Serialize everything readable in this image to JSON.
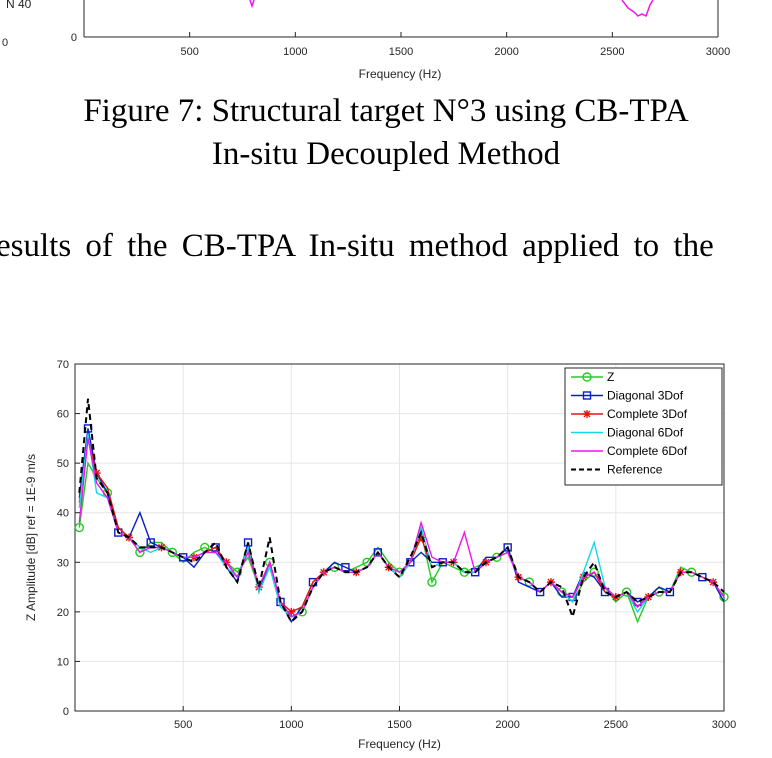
{
  "top_figure": {
    "ylabel_fragment": "N 40",
    "ytick_zero": "0",
    "left_stray": "0",
    "xticks": [
      "500",
      "1000",
      "1500",
      "2000",
      "2500",
      "3000"
    ],
    "xlabel": "Frequency (Hz)"
  },
  "caption": {
    "line1": "Figure 7: Structural target N°3 using CB-TPA",
    "line2": "In-situ Decoupled Method"
  },
  "body_text": "esults of the CB-TPA In-situ method applied to the",
  "chart_data": {
    "type": "line",
    "title": "",
    "xlabel": "Frequency (Hz)",
    "ylabel": "Z Amplitude [dB] ref = 1E-9 m/s",
    "xlim": [
      0,
      3000
    ],
    "ylim": [
      0,
      70
    ],
    "xticks": [
      500,
      1000,
      1500,
      2000,
      2500,
      3000
    ],
    "yticks": [
      0,
      10,
      20,
      30,
      40,
      50,
      60,
      70
    ],
    "grid": true,
    "legend_position": "top-right",
    "x": [
      20,
      60,
      100,
      150,
      200,
      250,
      300,
      350,
      400,
      450,
      500,
      550,
      600,
      650,
      700,
      750,
      800,
      850,
      900,
      950,
      1000,
      1050,
      1100,
      1150,
      1200,
      1250,
      1300,
      1350,
      1400,
      1450,
      1500,
      1550,
      1600,
      1650,
      1700,
      1750,
      1800,
      1850,
      1900,
      1950,
      2000,
      2050,
      2100,
      2150,
      2200,
      2250,
      2300,
      2350,
      2400,
      2450,
      2500,
      2550,
      2600,
      2650,
      2700,
      2750,
      2800,
      2850,
      2900,
      2950,
      3000
    ],
    "series": [
      {
        "name": "Z",
        "color": "#22cc22",
        "marker": "circle",
        "dash": "",
        "values": [
          37,
          50,
          47,
          44,
          37,
          35,
          32,
          34,
          34,
          32,
          30,
          32,
          33,
          32,
          30,
          28,
          31,
          25,
          30,
          22,
          19,
          20,
          25,
          28,
          29,
          28,
          29,
          30,
          33,
          30,
          28,
          30,
          36,
          26,
          30,
          29,
          28,
          29,
          30,
          31,
          33,
          27,
          26,
          24,
          26,
          24,
          22,
          26,
          28,
          25,
          22,
          24,
          18,
          23,
          24,
          24,
          29,
          28,
          27,
          26,
          23
        ]
      },
      {
        "name": "Diagonal 3Dof",
        "color": "#0a1ec8",
        "marker": "square",
        "dash": "",
        "values": [
          43,
          57,
          48,
          44,
          36,
          35,
          40,
          34,
          33,
          32,
          31,
          29,
          32,
          33,
          29,
          26,
          34,
          24,
          30,
          22,
          18,
          21,
          26,
          28,
          30,
          29,
          28,
          29,
          32,
          29,
          27,
          30,
          32,
          30,
          30,
          30,
          28,
          28,
          31,
          31,
          33,
          26,
          25,
          24,
          26,
          23,
          23,
          28,
          27,
          24,
          23,
          24,
          22,
          23,
          25,
          24,
          28,
          28,
          27,
          26,
          22
        ]
      },
      {
        "name": "Complete 3Dof",
        "color": "#e81414",
        "marker": "star",
        "dash": "",
        "values": [
          42,
          55,
          48,
          45,
          37,
          35,
          33,
          33,
          33,
          32,
          31,
          31,
          32,
          33,
          30,
          27,
          33,
          25,
          30,
          22,
          20,
          21,
          26,
          28,
          29,
          28,
          28,
          29,
          32,
          29,
          27,
          30,
          35,
          29,
          30,
          30,
          28,
          28,
          30,
          31,
          32,
          27,
          26,
          24,
          26,
          24,
          23,
          27,
          28,
          24,
          23,
          24,
          21,
          23,
          24,
          24,
          28,
          28,
          27,
          26,
          23
        ]
      },
      {
        "name": "Diagonal 6Dof",
        "color": "#14d8e8",
        "marker": "",
        "dash": "",
        "values": [
          41,
          56,
          44,
          43,
          36,
          35,
          33,
          32,
          33,
          32,
          31,
          31,
          32,
          32,
          29,
          27,
          33,
          24,
          29,
          21,
          19,
          20,
          25,
          28,
          29,
          28,
          28,
          29,
          32,
          29,
          27,
          30,
          37,
          29,
          30,
          30,
          28,
          28,
          30,
          31,
          32,
          27,
          26,
          24,
          26,
          24,
          22,
          28,
          34,
          25,
          23,
          24,
          20,
          23,
          24,
          24,
          28,
          28,
          27,
          26,
          23
        ]
      },
      {
        "name": "Complete 6Dof",
        "color": "#ee14ee",
        "marker": "",
        "dash": "",
        "values": [
          38,
          55,
          46,
          43,
          36,
          35,
          32,
          33,
          33,
          32,
          31,
          31,
          32,
          32,
          30,
          27,
          32,
          25,
          30,
          22,
          19,
          20,
          25,
          28,
          29,
          28,
          28,
          29,
          32,
          29,
          28,
          30,
          38,
          31,
          30,
          30,
          36,
          28,
          30,
          31,
          32,
          27,
          26,
          24,
          26,
          24,
          23,
          27,
          28,
          25,
          23,
          24,
          21,
          23,
          24,
          24,
          28,
          28,
          27,
          26,
          23
        ]
      },
      {
        "name": "Reference",
        "color": "#000000",
        "marker": "",
        "dash": "6,4",
        "values": [
          44,
          63,
          47,
          44,
          36,
          35,
          33,
          33,
          33,
          32,
          31,
          30,
          32,
          34,
          29,
          26,
          34,
          25,
          35,
          22,
          18,
          20,
          25,
          28,
          29,
          28,
          28,
          29,
          32,
          29,
          27,
          31,
          36,
          29,
          30,
          30,
          28,
          28,
          30,
          31,
          33,
          27,
          26,
          24,
          26,
          25,
          19,
          27,
          30,
          24,
          23,
          24,
          22,
          23,
          24,
          24,
          28,
          28,
          27,
          26,
          24
        ]
      }
    ]
  }
}
